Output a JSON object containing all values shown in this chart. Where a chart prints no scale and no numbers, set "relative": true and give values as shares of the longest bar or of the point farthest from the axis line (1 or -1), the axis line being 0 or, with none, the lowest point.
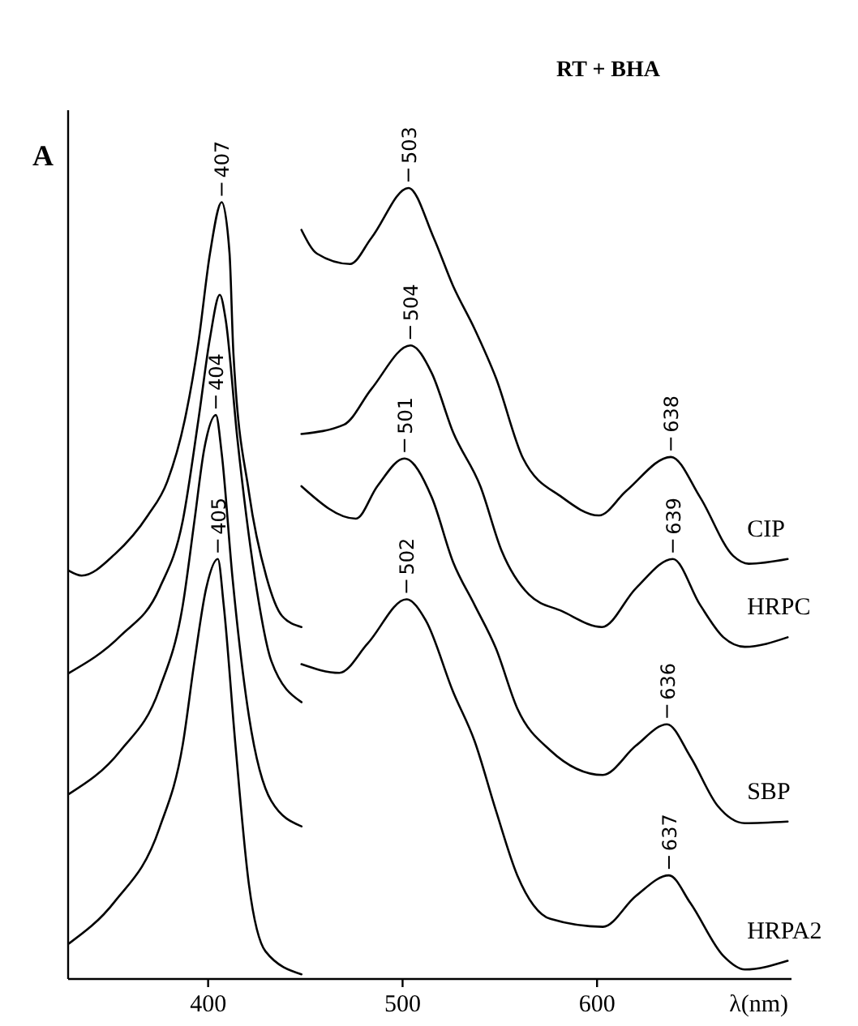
{
  "chart_data": {
    "type": "line",
    "title": "RT + BHA",
    "xlabel": "λ(nm)",
    "relative": true,
    "xlim": [
      328,
      700
    ],
    "xticks": [
      400,
      500,
      600
    ],
    "legend": false,
    "grid": false,
    "marker": "none",
    "line_style": "solid",
    "annotations": [
      "A",
      {
        "text": "407",
        "x": 407,
        "y": 0.982
      },
      {
        "text": "503",
        "x": 503,
        "y": 1.0
      },
      {
        "text": "504",
        "x": 504,
        "y": 0.801
      },
      {
        "text": "404",
        "x": 404,
        "y": 0.713
      },
      {
        "text": "501",
        "x": 501,
        "y": 0.658
      },
      {
        "text": "405",
        "x": 405,
        "y": 0.531
      },
      {
        "text": "502",
        "x": 502,
        "y": 0.48
      },
      {
        "text": "638",
        "x": 638,
        "y": 0.66
      },
      {
        "text": "639",
        "x": 639,
        "y": 0.531
      },
      {
        "text": "636",
        "x": 636,
        "y": 0.322
      },
      {
        "text": "637",
        "x": 637,
        "y": 0.131
      }
    ],
    "series": [
      {
        "name": "CIP",
        "color": "#000000",
        "x": [
          328.5,
          335,
          352,
          369,
          379,
          388,
          395,
          401,
          407,
          411,
          413,
          421,
          430,
          438,
          448,
          448,
          456,
          473,
          484,
          503,
          516,
          526,
          537,
          548,
          562,
          582,
          601,
          615,
          638,
          653,
          670,
          678,
          698
        ],
        "values": [
          0.516,
          0.51,
          0.537,
          0.586,
          0.629,
          0.707,
          0.805,
          0.918,
          0.982,
          0.918,
          0.791,
          0.615,
          0.508,
          0.459,
          0.445,
          0.947,
          0.917,
          0.904,
          0.937,
          1.0,
          0.937,
          0.876,
          0.822,
          0.76,
          0.658,
          0.609,
          0.586,
          0.617,
          0.66,
          0.609,
          0.535,
          0.525,
          0.531
        ]
      },
      {
        "name": "HRPC",
        "color": "#000000",
        "x": [
          328.5,
          355,
          375,
          387,
          395,
          401,
          406,
          409,
          415,
          424,
          432.5,
          448,
          448,
          470,
          484,
          504,
          515,
          526,
          540,
          551,
          565,
          582,
          602.5,
          620,
          639,
          653,
          665,
          676,
          698
        ],
        "values": [
          0.387,
          0.434,
          0.494,
          0.58,
          0.707,
          0.811,
          0.865,
          0.834,
          0.684,
          0.508,
          0.402,
          0.35,
          0.689,
          0.701,
          0.746,
          0.801,
          0.766,
          0.691,
          0.623,
          0.541,
          0.486,
          0.465,
          0.445,
          0.494,
          0.531,
          0.473,
          0.432,
          0.42,
          0.432
        ]
      },
      {
        "name": "SBP",
        "color": "#000000",
        "x": [
          328.5,
          355,
          375,
          387,
          393,
          398,
          404,
          407,
          412.5,
          421,
          432.5,
          448,
          448,
          476,
          487,
          501,
          515,
          526,
          537,
          548,
          559,
          576,
          603,
          620,
          636,
          648,
          662,
          676,
          698
        ],
        "values": [
          0.234,
          0.289,
          0.367,
          0.473,
          0.58,
          0.67,
          0.713,
          0.664,
          0.508,
          0.332,
          0.225,
          0.193,
          0.623,
          0.582,
          0.623,
          0.658,
          0.609,
          0.527,
          0.473,
          0.418,
          0.342,
          0.289,
          0.258,
          0.295,
          0.322,
          0.281,
          0.219,
          0.197,
          0.199
        ]
      },
      {
        "name": "HRPA2",
        "color": "#000000",
        "x": [
          328.5,
          352,
          375,
          387,
          393,
          399,
          405,
          408,
          414,
          421,
          429.5,
          448,
          448,
          467.5,
          482,
          502,
          512,
          526,
          537,
          548,
          559,
          576,
          603,
          620,
          637,
          648,
          665,
          676,
          698
        ],
        "values": [
          0.045,
          0.098,
          0.191,
          0.297,
          0.402,
          0.494,
          0.531,
          0.473,
          0.297,
          0.119,
          0.035,
          0.006,
          0.398,
          0.387,
          0.424,
          0.48,
          0.453,
          0.363,
          0.301,
          0.213,
          0.131,
          0.076,
          0.066,
          0.105,
          0.131,
          0.096,
          0.029,
          0.012,
          0.023
        ]
      }
    ]
  }
}
